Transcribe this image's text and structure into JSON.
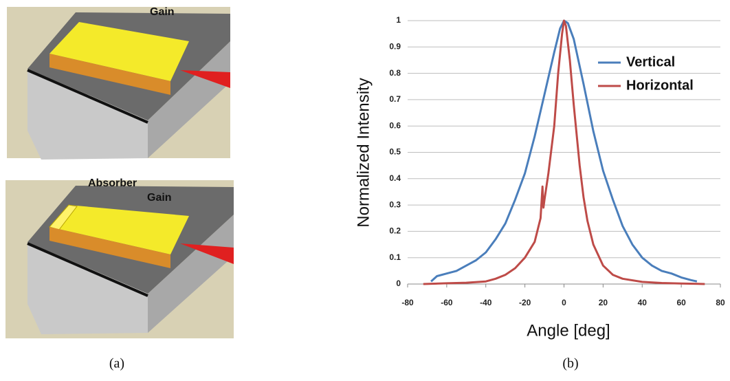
{
  "figure_a": {
    "top_label": "Gain",
    "bottom_labels": [
      "Absorber",
      "Gain"
    ]
  },
  "captions": [
    "(a)",
    "(b)"
  ],
  "chart_data": {
    "type": "line",
    "xlabel": "Angle [deg]",
    "ylabel": "Normalized Intensity",
    "xlim": [
      -80,
      80
    ],
    "xticks": [
      -80,
      -60,
      -40,
      -20,
      0,
      20,
      40,
      60,
      80
    ],
    "ylim": [
      0,
      1
    ],
    "yticks": [
      0,
      0.1,
      0.2,
      0.3,
      0.4,
      0.5,
      0.6,
      0.7,
      0.8,
      0.9,
      1
    ],
    "grid": true,
    "legend": "upper right",
    "series": [
      {
        "name": "Vertical",
        "color": "#4a7ebb",
        "x": [
          -68,
          -65,
          -60,
          -55,
          -50,
          -45,
          -40,
          -35,
          -30,
          -25,
          -20,
          -15,
          -10,
          -5,
          -2,
          0,
          2,
          5,
          10,
          15,
          20,
          25,
          30,
          35,
          40,
          45,
          50,
          55,
          60,
          65,
          68
        ],
        "values": [
          0.01,
          0.03,
          0.04,
          0.05,
          0.07,
          0.09,
          0.12,
          0.17,
          0.23,
          0.32,
          0.42,
          0.56,
          0.72,
          0.88,
          0.97,
          1.0,
          0.99,
          0.93,
          0.76,
          0.58,
          0.43,
          0.32,
          0.22,
          0.15,
          0.1,
          0.07,
          0.05,
          0.04,
          0.025,
          0.015,
          0.01
        ]
      },
      {
        "name": "Horizontal",
        "color": "#be4b48",
        "x": [
          -72,
          -60,
          -50,
          -40,
          -35,
          -30,
          -25,
          -20,
          -15,
          -12,
          -11,
          -10.5,
          -10,
          -8,
          -5,
          -3,
          -1,
          0,
          1,
          3,
          5,
          8,
          10,
          12,
          15,
          20,
          25,
          30,
          40,
          50,
          60,
          72
        ],
        "values": [
          0,
          0.003,
          0.005,
          0.01,
          0.02,
          0.035,
          0.06,
          0.1,
          0.16,
          0.25,
          0.37,
          0.29,
          0.32,
          0.42,
          0.6,
          0.8,
          0.95,
          1.0,
          0.98,
          0.85,
          0.68,
          0.45,
          0.33,
          0.24,
          0.15,
          0.07,
          0.035,
          0.02,
          0.008,
          0.004,
          0.002,
          0
        ]
      }
    ]
  }
}
